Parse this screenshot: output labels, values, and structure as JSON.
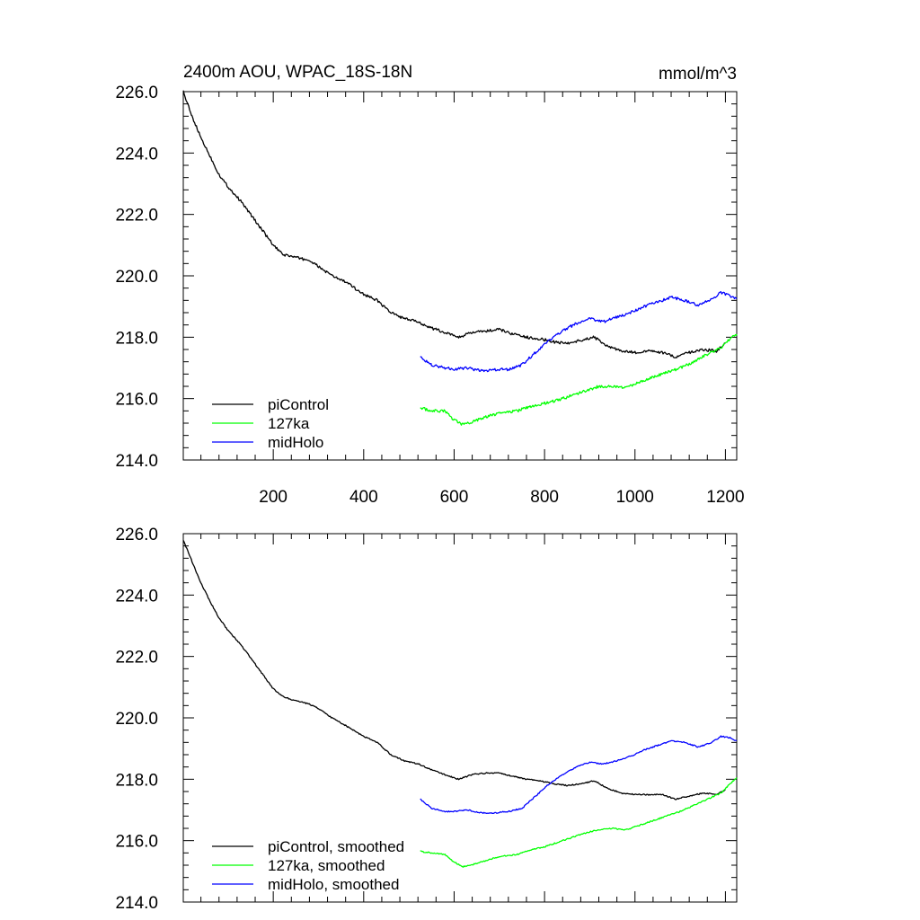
{
  "chart_data": [
    {
      "type": "line",
      "title": "2400m AOU, WPAC_18S-18N",
      "units": "mmol/m^3",
      "xlim": [
        1,
        1225
      ],
      "ylim": [
        214,
        226
      ],
      "xticks": [
        200,
        400,
        600,
        800,
        1000,
        1200
      ],
      "xtick_labels": [
        "200",
        "400",
        "600",
        "800",
        "1000",
        "1200"
      ],
      "yticks": [
        214,
        216,
        218,
        220,
        222,
        224,
        226
      ],
      "ytick_labels": [
        "214.0",
        "216.0",
        "218.0",
        "220.0",
        "222.0",
        "224.0",
        "226.0"
      ],
      "legend_position": "bottom-left",
      "series": [
        {
          "name": "piControl",
          "color": "#000000",
          "x": [
            1,
            20,
            40,
            60,
            80,
            100,
            130,
            160,
            180,
            200,
            220,
            250,
            280,
            300,
            330,
            360,
            400,
            430,
            460,
            490,
            520,
            550,
            580,
            610,
            640,
            670,
            700,
            730,
            760,
            790,
            820,
            850,
            880,
            910,
            940,
            970,
            1000,
            1030,
            1060,
            1090,
            1120,
            1150,
            1180,
            1200
          ],
          "y": [
            226.0,
            225.2,
            224.5,
            223.9,
            223.3,
            222.9,
            222.4,
            221.8,
            221.4,
            221.0,
            220.7,
            220.6,
            220.5,
            220.3,
            220.0,
            219.8,
            219.4,
            219.2,
            218.8,
            218.6,
            218.5,
            218.3,
            218.15,
            218.0,
            218.15,
            218.2,
            218.25,
            218.1,
            218.0,
            217.95,
            217.85,
            217.8,
            217.9,
            218.0,
            217.7,
            217.55,
            217.5,
            217.55,
            217.5,
            217.35,
            217.5,
            217.6,
            217.55,
            217.8
          ]
        },
        {
          "name": "127ka",
          "color": "#00ff00",
          "x": [
            525,
            550,
            580,
            600,
            620,
            650,
            680,
            710,
            740,
            770,
            800,
            830,
            860,
            890,
            920,
            950,
            980,
            1010,
            1040,
            1070,
            1100,
            1130,
            1160,
            1190,
            1210,
            1225
          ],
          "y": [
            215.7,
            215.6,
            215.6,
            215.3,
            215.15,
            215.3,
            215.45,
            215.55,
            215.6,
            215.75,
            215.85,
            215.95,
            216.1,
            216.25,
            216.4,
            216.4,
            216.35,
            216.55,
            216.7,
            216.85,
            217.0,
            217.2,
            217.45,
            217.65,
            217.95,
            218.1
          ]
        },
        {
          "name": "midHolo",
          "color": "#0000ff",
          "x": [
            525,
            550,
            580,
            600,
            630,
            660,
            690,
            720,
            750,
            780,
            810,
            840,
            870,
            900,
            930,
            960,
            990,
            1020,
            1050,
            1080,
            1110,
            1140,
            1170,
            1190,
            1210,
            1225
          ],
          "y": [
            217.35,
            217.1,
            217.0,
            216.95,
            217.0,
            216.9,
            216.95,
            216.95,
            217.1,
            217.5,
            217.9,
            218.2,
            218.45,
            218.6,
            218.5,
            218.65,
            218.8,
            219.0,
            219.15,
            219.3,
            219.2,
            219.05,
            219.25,
            219.45,
            219.35,
            219.25
          ]
        }
      ]
    },
    {
      "type": "line",
      "title": "",
      "xlim": [
        1,
        1225
      ],
      "ylim": [
        214,
        226
      ],
      "yticks": [
        214,
        216,
        218,
        220,
        222,
        224,
        226
      ],
      "ytick_labels": [
        "214.0",
        "216.0",
        "218.0",
        "220.0",
        "222.0",
        "224.0",
        "226.0"
      ],
      "legend_position": "bottom-left",
      "series": [
        {
          "name": "piControl, smoothed",
          "color": "#000000",
          "x": [
            1,
            20,
            40,
            60,
            80,
            100,
            130,
            160,
            180,
            200,
            220,
            250,
            280,
            300,
            330,
            360,
            400,
            430,
            460,
            490,
            520,
            550,
            580,
            610,
            640,
            670,
            700,
            730,
            760,
            790,
            820,
            850,
            880,
            910,
            940,
            970,
            1000,
            1030,
            1060,
            1090,
            1120,
            1150,
            1180,
            1200
          ],
          "y": [
            225.8,
            225.1,
            224.4,
            223.8,
            223.25,
            222.85,
            222.35,
            221.75,
            221.35,
            220.95,
            220.7,
            220.55,
            220.45,
            220.3,
            220.0,
            219.75,
            219.4,
            219.2,
            218.8,
            218.6,
            218.5,
            218.3,
            218.15,
            218.0,
            218.15,
            218.2,
            218.2,
            218.1,
            218.0,
            217.95,
            217.85,
            217.8,
            217.85,
            217.95,
            217.7,
            217.55,
            217.5,
            217.5,
            217.5,
            217.35,
            217.45,
            217.55,
            217.5,
            217.65
          ]
        },
        {
          "name": "127ka, smoothed",
          "color": "#00ff00",
          "x": [
            525,
            550,
            580,
            600,
            620,
            650,
            680,
            710,
            740,
            770,
            800,
            830,
            860,
            890,
            920,
            950,
            980,
            1010,
            1040,
            1070,
            1100,
            1130,
            1160,
            1190,
            1210,
            1225
          ],
          "y": [
            215.65,
            215.6,
            215.55,
            215.3,
            215.15,
            215.25,
            215.4,
            215.5,
            215.55,
            215.7,
            215.8,
            215.95,
            216.1,
            216.25,
            216.35,
            216.4,
            216.35,
            216.5,
            216.65,
            216.8,
            216.95,
            217.15,
            217.35,
            217.55,
            217.85,
            218.05
          ]
        },
        {
          "name": "midHolo, smoothed",
          "color": "#0000ff",
          "x": [
            525,
            550,
            580,
            600,
            630,
            660,
            690,
            720,
            750,
            780,
            810,
            840,
            870,
            900,
            930,
            960,
            990,
            1020,
            1050,
            1080,
            1110,
            1140,
            1170,
            1190,
            1210,
            1225
          ],
          "y": [
            217.35,
            217.05,
            216.95,
            216.95,
            217.0,
            216.9,
            216.9,
            216.95,
            217.05,
            217.45,
            217.85,
            218.15,
            218.4,
            218.55,
            218.5,
            218.6,
            218.75,
            218.95,
            219.1,
            219.25,
            219.2,
            219.05,
            219.2,
            219.4,
            219.35,
            219.25
          ]
        }
      ]
    }
  ]
}
